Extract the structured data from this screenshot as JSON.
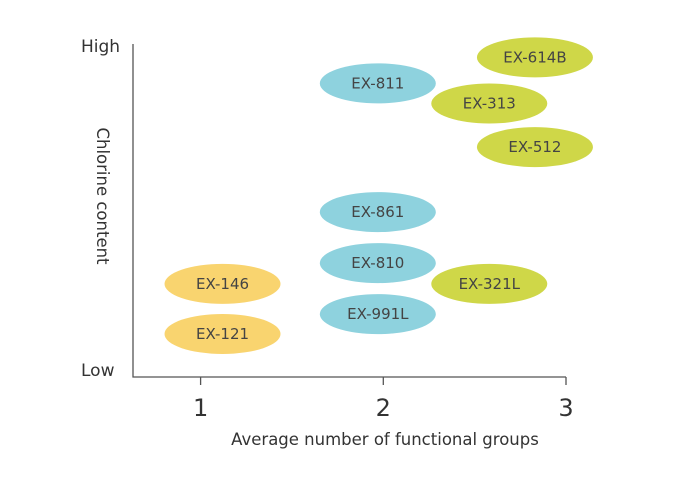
{
  "chart_data": {
    "type": "scatter",
    "title": "",
    "xlabel": "Average number of functional groups",
    "ylabel": "Chlorine content",
    "x_ticks": [
      "1",
      "2",
      "3"
    ],
    "y_ticks": {
      "low": "Low",
      "high": "High"
    },
    "xlim": [
      0.63,
      3.0
    ],
    "ylim": [
      0,
      100
    ],
    "legend": "none",
    "grid": false,
    "groups": [
      {
        "id": "g1",
        "color": "#F9D46F"
      },
      {
        "id": "g2",
        "color": "#8ED2DE"
      },
      {
        "id": "g3",
        "color": "#CFD748"
      }
    ],
    "points": [
      {
        "label": "EX-614B",
        "x": 2.83,
        "y": 96.5,
        "group": "g3"
      },
      {
        "label": "EX-811",
        "x": 1.97,
        "y": 88.5,
        "group": "g2"
      },
      {
        "label": "EX-313",
        "x": 2.58,
        "y": 82.3,
        "group": "g3"
      },
      {
        "label": "EX-512",
        "x": 2.83,
        "y": 68.9,
        "group": "g3"
      },
      {
        "label": "EX-861",
        "x": 1.97,
        "y": 48.9,
        "group": "g2"
      },
      {
        "label": "EX-810",
        "x": 1.97,
        "y": 33.2,
        "group": "g2"
      },
      {
        "label": "EX-146",
        "x": 1.12,
        "y": 26.8,
        "group": "g1"
      },
      {
        "label": "EX-321L",
        "x": 2.58,
        "y": 26.8,
        "group": "g3"
      },
      {
        "label": "EX-991L",
        "x": 1.97,
        "y": 17.5,
        "group": "g2"
      },
      {
        "label": "EX-121",
        "x": 1.12,
        "y": 11.4,
        "group": "g1"
      }
    ]
  }
}
